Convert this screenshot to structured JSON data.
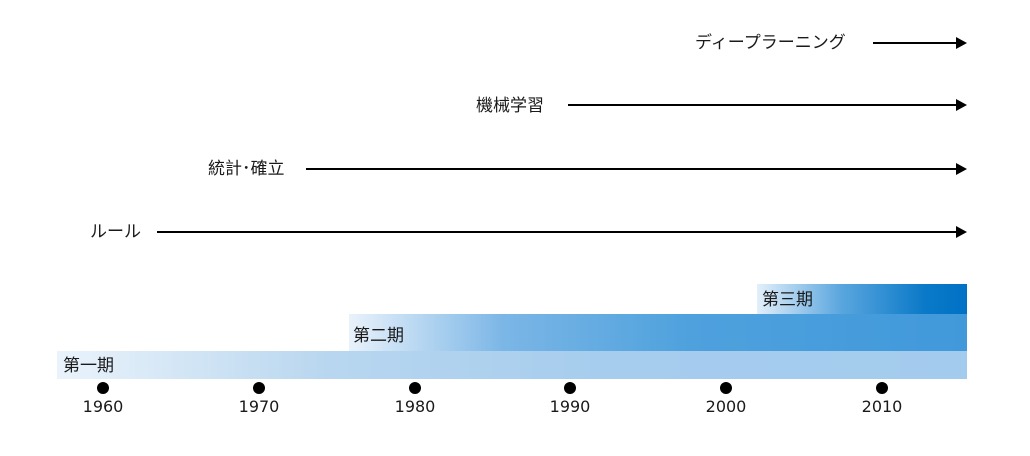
{
  "techniques": [
    {
      "label": "ディープラーニング"
    },
    {
      "label": "機械学習"
    },
    {
      "label": "統計･確立"
    },
    {
      "label": "ルール"
    }
  ],
  "periods": [
    {
      "label": "第一期"
    },
    {
      "label": "第二期"
    },
    {
      "label": "第三期"
    }
  ],
  "timeline": {
    "years": [
      "1960",
      "1970",
      "1980",
      "1990",
      "2000",
      "2010"
    ]
  },
  "colors": {
    "arrow": "#000000",
    "period_light": "#a3cbed",
    "period_mid": "#4199da",
    "period_dark": "#0071c5"
  }
}
